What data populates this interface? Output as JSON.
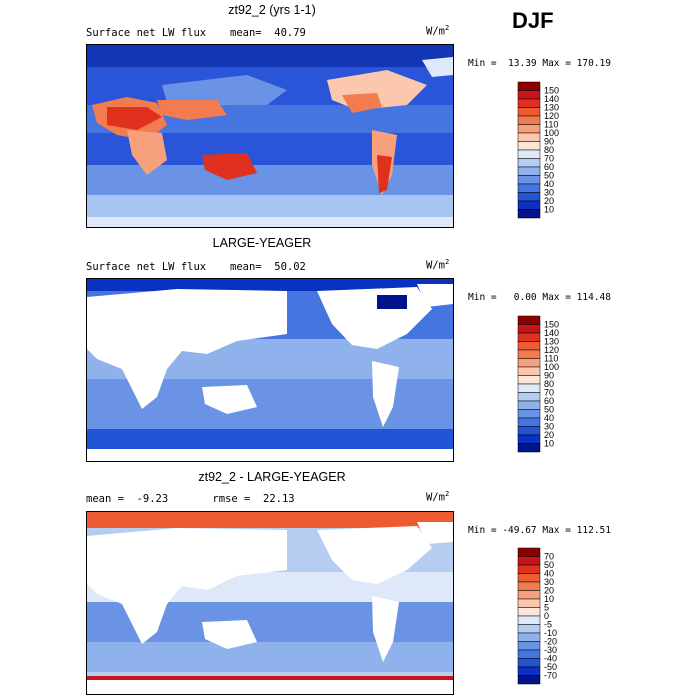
{
  "season": "DJF",
  "panels": [
    {
      "title": "zt92_2 (yrs 1-1)",
      "field": "Surface net LW flux",
      "stat": "mean=  40.79",
      "units": "W/m",
      "units_power": "2",
      "minmax": "Min =  13.39 Max = 170.19",
      "colorbar_labels": [
        "150",
        "140",
        "130",
        "120",
        "110",
        "100",
        "90",
        "80",
        "70",
        "60",
        "50",
        "40",
        "30",
        "20",
        "10"
      ],
      "colorbar_colors": [
        "#8b0000",
        "#c8141a",
        "#e0301e",
        "#ee5a32",
        "#f27c50",
        "#f7a07c",
        "#fbc8ae",
        "#fde6d8",
        "#dfe8f8",
        "#b6cdf2",
        "#8fb1ec",
        "#6a93e6",
        "#4475e0",
        "#2254d6",
        "#0a31c2",
        "#00158a"
      ],
      "map_style": "warm"
    },
    {
      "title": "LARGE-YEAGER",
      "field": "Surface net LW flux",
      "stat": "mean=  50.02",
      "units": "W/m",
      "units_power": "2",
      "minmax": "Min =   0.00 Max = 114.48",
      "colorbar_labels": [
        "150",
        "140",
        "130",
        "120",
        "110",
        "100",
        "90",
        "80",
        "70",
        "60",
        "50",
        "40",
        "30",
        "20",
        "10"
      ],
      "colorbar_colors": [
        "#8b0000",
        "#c8141a",
        "#e0301e",
        "#ee5a32",
        "#f27c50",
        "#f7a07c",
        "#fbc8ae",
        "#fde6d8",
        "#dfe8f8",
        "#b6cdf2",
        "#8fb1ec",
        "#6a93e6",
        "#4475e0",
        "#2254d6",
        "#0a31c2",
        "#00158a"
      ],
      "map_style": "masked"
    },
    {
      "title": "zt92_2 - LARGE-YEAGER",
      "field": "",
      "stat": "mean =  -9.23       rmse =  22.13",
      "units": "W/m",
      "units_power": "2",
      "minmax": "Min = -49.67 Max = 112.51",
      "colorbar_labels": [
        "70",
        "50",
        "40",
        "30",
        "20",
        "10",
        "5",
        "0",
        "-5",
        "-10",
        "-20",
        "-30",
        "-40",
        "-50",
        "-70"
      ],
      "colorbar_colors": [
        "#8b0000",
        "#c8141a",
        "#e0301e",
        "#ee5a32",
        "#f27c50",
        "#f7a07c",
        "#fbc8ae",
        "#fde6d8",
        "#dfe8f8",
        "#b6cdf2",
        "#8fb1ec",
        "#6a93e6",
        "#4475e0",
        "#2254d6",
        "#0a31c2",
        "#00158a"
      ],
      "map_style": "diff"
    }
  ],
  "chart_data": [
    {
      "type": "heatmap",
      "title": "zt92_2 (yrs 1-1)",
      "subtitle": "Surface net LW flux",
      "mean": 40.79,
      "min": 13.39,
      "max": 170.19,
      "units": "W/m2",
      "contour_levels": [
        10,
        20,
        30,
        40,
        50,
        60,
        70,
        80,
        90,
        100,
        110,
        120,
        130,
        140,
        150
      ]
    },
    {
      "type": "heatmap",
      "title": "LARGE-YEAGER",
      "subtitle": "Surface net LW flux",
      "mean": 50.02,
      "min": 0.0,
      "max": 114.48,
      "units": "W/m2",
      "contour_levels": [
        10,
        20,
        30,
        40,
        50,
        60,
        70,
        80,
        90,
        100,
        110,
        120,
        130,
        140,
        150
      ]
    },
    {
      "type": "heatmap",
      "title": "zt92_2 - LARGE-YEAGER",
      "mean": -9.23,
      "rmse": 22.13,
      "min": -49.67,
      "max": 112.51,
      "units": "W/m2",
      "contour_levels": [
        -70,
        -50,
        -40,
        -30,
        -20,
        -10,
        -5,
        0,
        5,
        10,
        20,
        30,
        40,
        50,
        70
      ]
    }
  ]
}
